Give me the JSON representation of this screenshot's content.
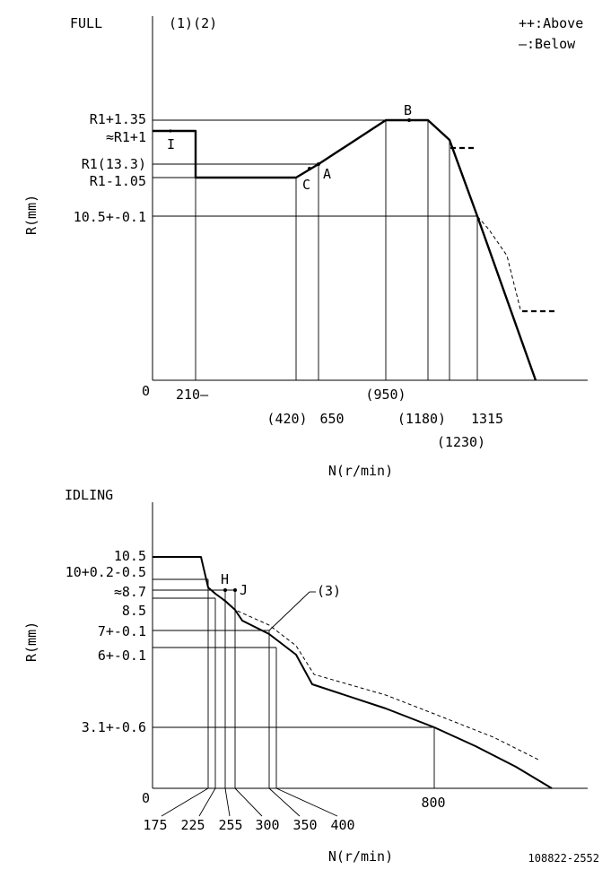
{
  "full": {
    "title": "FULL",
    "notes": "(1)(2)",
    "legend_above": "++:Above",
    "legend_below": "—:Below",
    "ylabel": "R(mm)",
    "xlabel": "N(r/min)",
    "origin": "0",
    "y_labels": [
      "R1+1.35",
      "≈R1+1",
      "R1(13.3)",
      "R1-1.05",
      "10.5+-0.1"
    ],
    "x_labels": [
      "210—",
      "(420)",
      "650",
      "(950)",
      "(1180)",
      "(1230)",
      "1315"
    ],
    "points": {
      "A": "A",
      "B": "B",
      "C": "C",
      "I": "I"
    }
  },
  "idling": {
    "title": "IDLING",
    "ylabel": "R(mm)",
    "xlabel": "N(r/min)",
    "origin": "0",
    "callout": "(3)",
    "y_labels": [
      "10.5",
      "10+0.2-0.5",
      "≈8.7",
      "8.5",
      "7+-0.1",
      "6+-0.1",
      "3.1+-0.6"
    ],
    "x_labels": [
      "175",
      "225",
      "255",
      "300",
      "350",
      "400",
      "800"
    ],
    "points": {
      "H": "H",
      "J": "J"
    }
  },
  "code": "108822-2552"
}
